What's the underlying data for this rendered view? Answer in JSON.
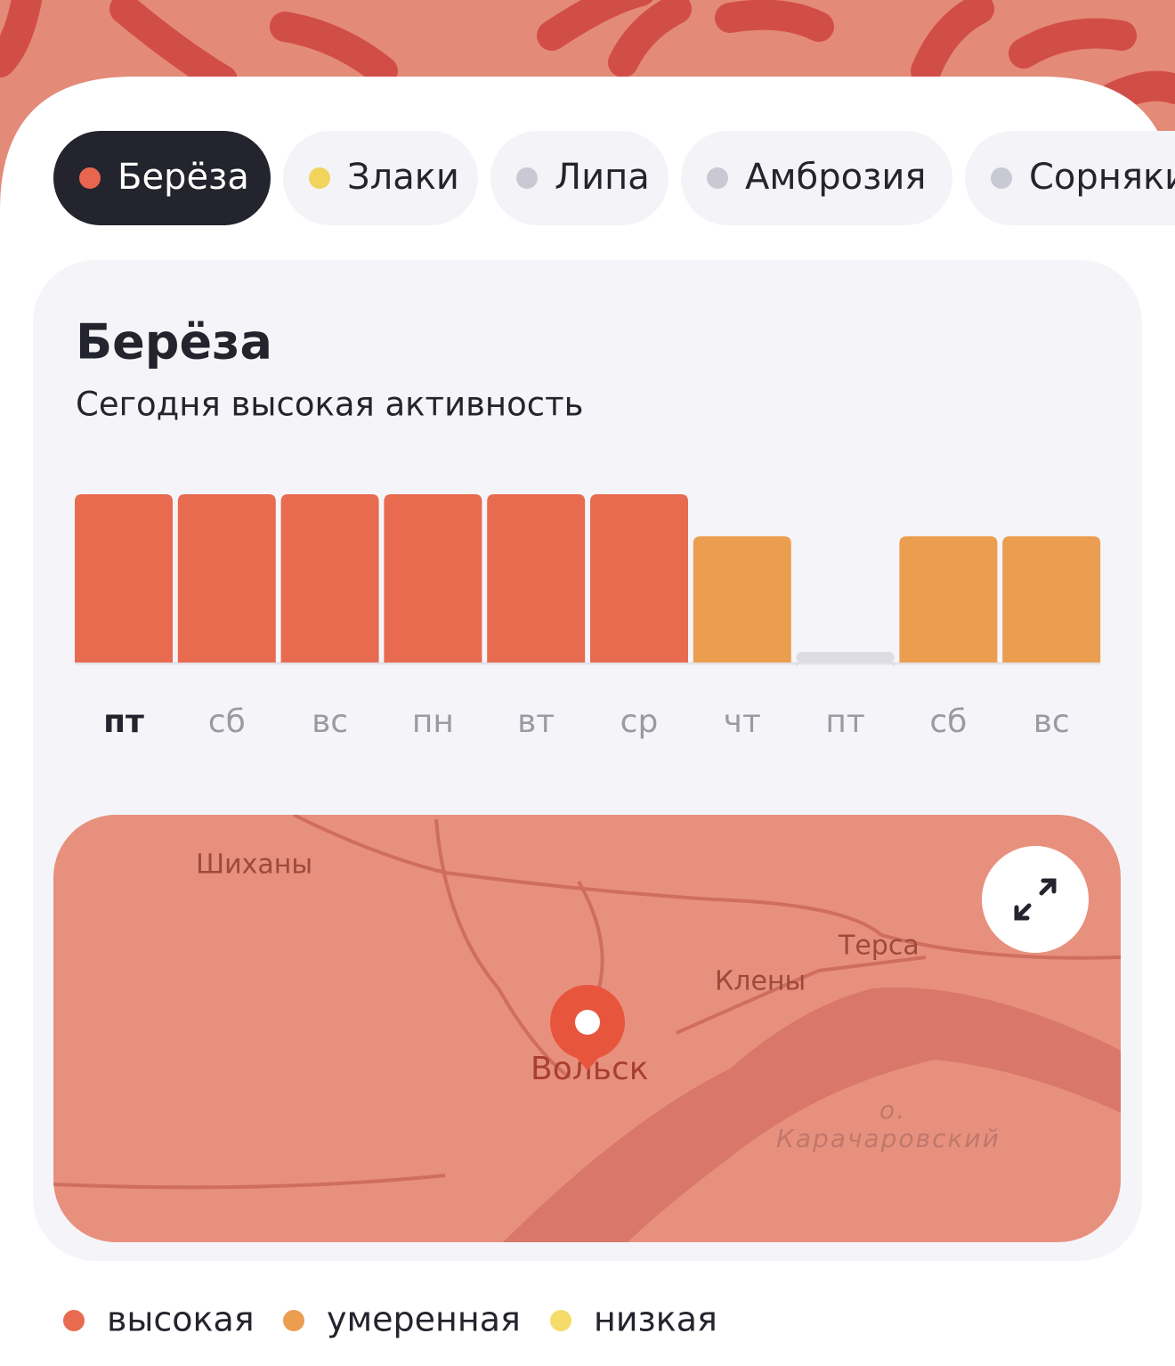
{
  "tabs": [
    {
      "label": "Берёза",
      "color": "#e8654f",
      "active": true
    },
    {
      "label": "Злаки",
      "color": "#f2d35c",
      "active": false
    },
    {
      "label": "Липа",
      "color": "#c9c9d3",
      "active": false
    },
    {
      "label": "Амброзия",
      "color": "#c9c9d3",
      "active": false
    },
    {
      "label": "Сорняки",
      "color": "#c9c9d3",
      "active": false
    }
  ],
  "card": {
    "title": "Берёза",
    "subtitle": "Сегодня высокая активность"
  },
  "chart_data": {
    "type": "bar",
    "categories": [
      "пт",
      "сб",
      "вс",
      "пн",
      "вт",
      "ср",
      "чт",
      "пт",
      "сб",
      "вс"
    ],
    "values": [
      4,
      4,
      4,
      4,
      4,
      4,
      3,
      0,
      3,
      3
    ],
    "colors": [
      "#e86b50",
      "#e86b50",
      "#e86b50",
      "#e86b50",
      "#e86b50",
      "#e86b50",
      "#eb9e50",
      "#dcdce2",
      "#eb9e50",
      "#eb9e50"
    ],
    "ylim": [
      0,
      4
    ]
  },
  "map": {
    "labels": [
      "Шиханы",
      "Терса",
      "Клены",
      "Вольск",
      "о.",
      "Карачаровский"
    ]
  },
  "legend": [
    {
      "label": "высокая",
      "color": "#e86b50"
    },
    {
      "label": "умеренная",
      "color": "#eb9e50"
    },
    {
      "label": "низкая",
      "color": "#f5dc6a"
    }
  ]
}
